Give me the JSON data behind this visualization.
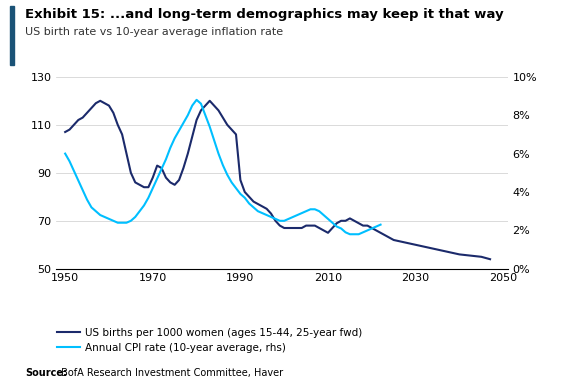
{
  "title": "Exhibit 15: ...and long-term demographics may keep it that way",
  "subtitle": "US birth rate vs 10-year average inflation rate",
  "source_bold": "Source:",
  "source_rest": " BofA Research Investment Committee, Haver",
  "birth_years": [
    1950,
    1951,
    1952,
    1953,
    1954,
    1955,
    1956,
    1957,
    1958,
    1959,
    1960,
    1961,
    1962,
    1963,
    1964,
    1965,
    1966,
    1967,
    1968,
    1969,
    1970,
    1971,
    1972,
    1973,
    1974,
    1975,
    1976,
    1977,
    1978,
    1979,
    1980,
    1981,
    1982,
    1983,
    1984,
    1985,
    1986,
    1987,
    1988,
    1989,
    1990,
    1991,
    1992,
    1993,
    1994,
    1995,
    1996,
    1997,
    1998,
    1999,
    2000,
    2001,
    2002,
    2003,
    2004,
    2005,
    2006,
    2007,
    2008,
    2009,
    2010,
    2011,
    2012,
    2013,
    2014,
    2015,
    2016,
    2017,
    2018,
    2019,
    2020,
    2021,
    2022,
    2023,
    2024,
    2025,
    2030,
    2035,
    2040,
    2045,
    2047
  ],
  "birth_values": [
    107,
    108,
    110,
    112,
    113,
    115,
    117,
    119,
    120,
    119,
    118,
    115,
    110,
    106,
    98,
    90,
    86,
    85,
    84,
    84,
    88,
    93,
    92,
    88,
    86,
    85,
    87,
    92,
    98,
    105,
    112,
    116,
    118,
    120,
    118,
    116,
    113,
    110,
    108,
    106,
    87,
    82,
    80,
    78,
    77,
    76,
    75,
    73,
    70,
    68,
    67,
    67,
    67,
    67,
    67,
    68,
    68,
    68,
    67,
    66,
    65,
    67,
    69,
    70,
    70,
    71,
    70,
    69,
    68,
    68,
    67,
    66,
    65,
    64,
    63,
    62,
    60,
    58,
    56,
    55,
    54
  ],
  "cpi_years": [
    1950,
    1951,
    1952,
    1953,
    1954,
    1955,
    1956,
    1957,
    1958,
    1959,
    1960,
    1961,
    1962,
    1963,
    1964,
    1965,
    1966,
    1967,
    1968,
    1969,
    1970,
    1971,
    1972,
    1973,
    1974,
    1975,
    1976,
    1977,
    1978,
    1979,
    1980,
    1981,
    1982,
    1983,
    1984,
    1985,
    1986,
    1987,
    1988,
    1989,
    1990,
    1991,
    1992,
    1993,
    1994,
    1995,
    1996,
    1997,
    1998,
    1999,
    2000,
    2001,
    2002,
    2003,
    2004,
    2005,
    2006,
    2007,
    2008,
    2009,
    2010,
    2011,
    2012,
    2013,
    2014,
    2015,
    2016,
    2017,
    2018,
    2019,
    2020,
    2021,
    2022
  ],
  "cpi_values": [
    6.0,
    5.6,
    5.1,
    4.6,
    4.1,
    3.6,
    3.2,
    3.0,
    2.8,
    2.7,
    2.6,
    2.5,
    2.4,
    2.4,
    2.4,
    2.5,
    2.7,
    3.0,
    3.3,
    3.7,
    4.2,
    4.7,
    5.2,
    5.7,
    6.3,
    6.8,
    7.2,
    7.6,
    8.0,
    8.5,
    8.8,
    8.6,
    8.0,
    7.4,
    6.7,
    6.0,
    5.4,
    4.9,
    4.5,
    4.2,
    3.9,
    3.7,
    3.4,
    3.2,
    3.0,
    2.9,
    2.8,
    2.7,
    2.6,
    2.5,
    2.5,
    2.6,
    2.7,
    2.8,
    2.9,
    3.0,
    3.1,
    3.1,
    3.0,
    2.8,
    2.6,
    2.4,
    2.2,
    2.1,
    1.9,
    1.8,
    1.8,
    1.8,
    1.9,
    2.0,
    2.1,
    2.2,
    2.3
  ],
  "xlim": [
    1948,
    2051
  ],
  "ylim_left": [
    50,
    130
  ],
  "ylim_right": [
    0,
    10
  ],
  "xticks": [
    1950,
    1970,
    1990,
    2010,
    2030,
    2050
  ],
  "yticks_left": [
    50,
    70,
    90,
    110,
    130
  ],
  "yticks_right": [
    0,
    2,
    4,
    6,
    8,
    10
  ],
  "birth_color": "#1B2A6B",
  "cpi_color": "#00BFFF",
  "accent_bar_color": "#1a5276",
  "line_width": 1.5,
  "legend_entries": [
    "US births per 1000 women (ages 15-44, 25-year fwd)",
    "Annual CPI rate (10-year average, rhs)"
  ],
  "legend_colors": [
    "#1B2A6B",
    "#00BFFF"
  ],
  "title_fontsize": 9.5,
  "subtitle_fontsize": 8.0,
  "tick_fontsize": 8,
  "legend_fontsize": 7.5,
  "source_fontsize": 7
}
